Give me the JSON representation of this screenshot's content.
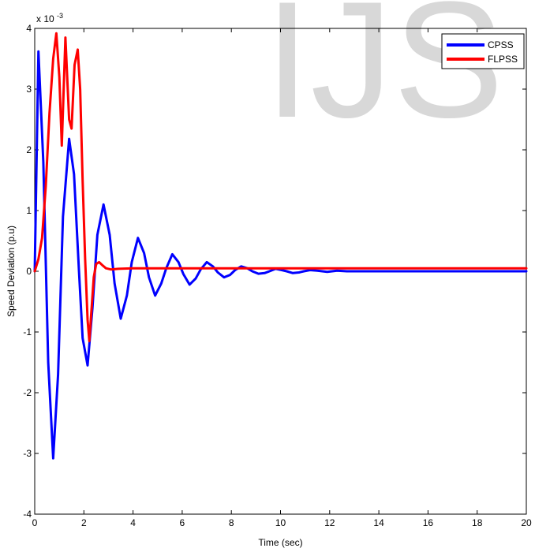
{
  "watermark": "IJS",
  "chart_data": {
    "type": "line",
    "title": "",
    "xlabel": "Time (sec)",
    "ylabel": "Speed Deviation (p.u)",
    "exponent_label": "x 10",
    "exponent_power": "-3",
    "xlim": [
      0,
      20
    ],
    "ylim": [
      -4,
      4
    ],
    "xticks": [
      0,
      2,
      4,
      6,
      8,
      10,
      12,
      14,
      16,
      18,
      20
    ],
    "yticks": [
      -4,
      -3,
      -2,
      -1,
      0,
      1,
      2,
      3,
      4
    ],
    "grid": false,
    "legend_position": "top-right",
    "series": [
      {
        "name": "CPSS",
        "color": "#0000ff",
        "x": [
          0,
          0.15,
          0.35,
          0.55,
          0.75,
          0.95,
          1.15,
          1.4,
          1.6,
          1.8,
          1.95,
          2.15,
          2.35,
          2.55,
          2.8,
          3.05,
          3.25,
          3.5,
          3.75,
          3.95,
          4.2,
          4.45,
          4.65,
          4.9,
          5.15,
          5.35,
          5.6,
          5.85,
          6.05,
          6.3,
          6.55,
          6.75,
          7.0,
          7.25,
          7.45,
          7.7,
          7.95,
          8.15,
          8.4,
          8.65,
          8.85,
          9.1,
          9.35,
          9.55,
          9.8,
          10.05,
          10.25,
          10.5,
          10.75,
          10.95,
          11.2,
          11.5,
          11.9,
          12.3,
          12.7,
          13.1,
          13.5,
          14,
          15,
          16,
          17,
          18,
          19,
          20
        ],
        "y": [
          0,
          3.62,
          1.8,
          -1.5,
          -3.08,
          -1.7,
          0.9,
          2.18,
          1.6,
          0,
          -1.1,
          -1.55,
          -0.6,
          0.6,
          1.1,
          0.6,
          -0.2,
          -0.78,
          -0.4,
          0.15,
          0.55,
          0.3,
          -0.1,
          -0.4,
          -0.2,
          0.05,
          0.28,
          0.15,
          -0.05,
          -0.22,
          -0.12,
          0.03,
          0.15,
          0.08,
          -0.02,
          -0.1,
          -0.06,
          0.02,
          0.08,
          0.05,
          0,
          -0.04,
          -0.03,
          0,
          0.04,
          0.02,
          0,
          -0.03,
          -0.02,
          0,
          0.02,
          0.01,
          -0.01,
          0.01,
          0,
          0,
          0,
          0,
          0,
          0,
          0,
          0,
          0,
          0
        ]
      },
      {
        "name": "FLPSS",
        "color": "#ff0000",
        "x": [
          0,
          0.15,
          0.3,
          0.45,
          0.6,
          0.75,
          0.88,
          1.0,
          1.1,
          1.25,
          1.4,
          1.5,
          1.62,
          1.75,
          1.85,
          1.95,
          2.05,
          2.15,
          2.22,
          2.3,
          2.4,
          2.5,
          2.62,
          2.75,
          2.9,
          3.1,
          3.4,
          4,
          6,
          8,
          10,
          12,
          14,
          16,
          18,
          20
        ],
        "y": [
          0,
          0.2,
          0.55,
          1.4,
          2.6,
          3.5,
          3.92,
          3.2,
          2.07,
          3.85,
          2.5,
          2.35,
          3.4,
          3.65,
          3.0,
          1.5,
          0.2,
          -0.8,
          -1.15,
          -0.7,
          -0.1,
          0.12,
          0.15,
          0.1,
          0.05,
          0.03,
          0.04,
          0.05,
          0.05,
          0.05,
          0.05,
          0.05,
          0.05,
          0.05,
          0.05,
          0.05
        ]
      }
    ]
  }
}
